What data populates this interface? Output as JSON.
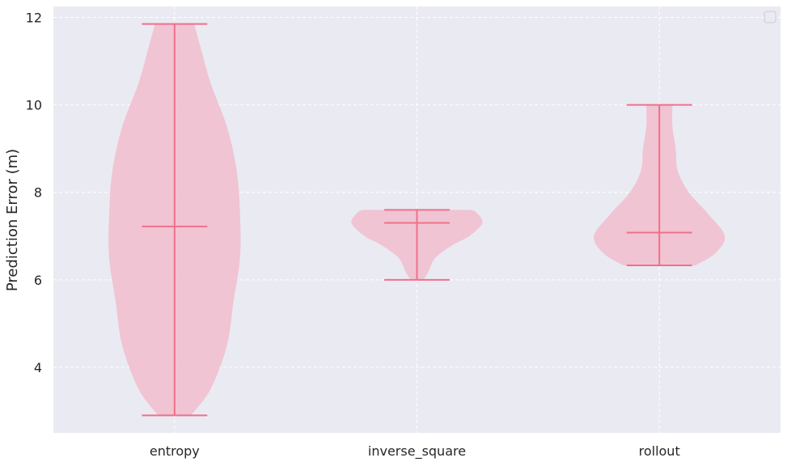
{
  "chart_data": {
    "type": "violin",
    "categories": [
      "entropy",
      "inverse_square",
      "rollout"
    ],
    "ylabel": "Prediction Error (m)",
    "xlabel": "",
    "ylim": [
      2.5,
      12.25
    ],
    "yticks": [
      4,
      6,
      8,
      10,
      12
    ],
    "grid": true,
    "legend": "top-right (empty)",
    "colors": {
      "body": "#f0c2d1",
      "lines": "#f0708a",
      "background": "#eaeaf2",
      "grid": "#ffffff"
    },
    "violins": [
      {
        "name": "entropy",
        "min": 2.9,
        "max": 11.85,
        "median": 7.22,
        "profile": [
          [
            2.9,
            0.25
          ],
          [
            3.5,
            0.55
          ],
          [
            4.5,
            0.8
          ],
          [
            5.5,
            0.9
          ],
          [
            6.5,
            1.0
          ],
          [
            7.5,
            1.0
          ],
          [
            8.5,
            0.95
          ],
          [
            9.5,
            0.8
          ],
          [
            10.5,
            0.55
          ],
          [
            11.3,
            0.4
          ],
          [
            11.85,
            0.3
          ]
        ]
      },
      {
        "name": "inverse_square",
        "min": 6.0,
        "max": 7.6,
        "median": 7.3,
        "profile": [
          [
            6.0,
            0.1
          ],
          [
            6.2,
            0.18
          ],
          [
            6.5,
            0.28
          ],
          [
            6.8,
            0.55
          ],
          [
            7.0,
            0.8
          ],
          [
            7.3,
            1.0
          ],
          [
            7.55,
            0.9
          ],
          [
            7.6,
            0.82
          ]
        ]
      },
      {
        "name": "rollout",
        "min": 6.33,
        "max": 10.0,
        "median": 7.08,
        "profile": [
          [
            6.33,
            0.55
          ],
          [
            6.6,
            0.85
          ],
          [
            7.0,
            1.0
          ],
          [
            7.5,
            0.75
          ],
          [
            8.0,
            0.45
          ],
          [
            8.5,
            0.28
          ],
          [
            9.0,
            0.25
          ],
          [
            9.5,
            0.2
          ],
          [
            10.0,
            0.2
          ]
        ]
      }
    ]
  }
}
